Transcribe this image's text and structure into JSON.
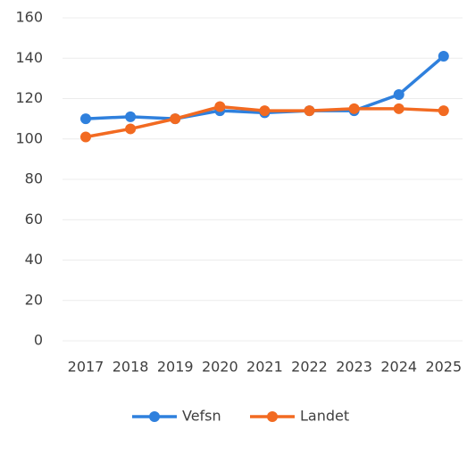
{
  "chart_data": {
    "type": "line",
    "categories": [
      "2017",
      "2018",
      "2019",
      "2020",
      "2021",
      "2022",
      "2023",
      "2024",
      "2025"
    ],
    "series": [
      {
        "name": "Vefsn",
        "color": "#2f80dd",
        "values": [
          110,
          111,
          110,
          114,
          113,
          114,
          114,
          122,
          141
        ]
      },
      {
        "name": "Landet",
        "color": "#f26a21",
        "values": [
          101,
          105,
          110,
          116,
          114,
          114,
          115,
          115,
          114
        ]
      }
    ],
    "ylim": [
      0,
      160
    ],
    "yticks": [
      0,
      20,
      40,
      60,
      80,
      100,
      120,
      140,
      160
    ],
    "grid": true,
    "legend": "bottom"
  }
}
